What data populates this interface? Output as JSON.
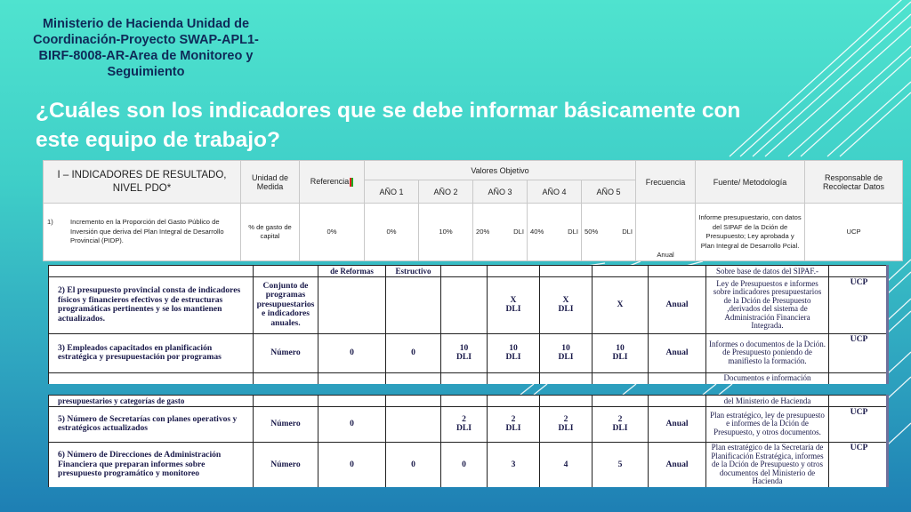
{
  "slide": {
    "org_title": "Ministerio de Hacienda Unidad de Coordinación-Proyecto SWAP-APL1-BIRF-8008-AR-Area de Monitoreo y Seguimiento",
    "question": "¿Cuáles son los indicadores que se debe informar básicamente con este equipo de trabajo?",
    "colors": {
      "title": "#ffffff",
      "org_title": "#0f2a58",
      "background_top": "#4fe3cf",
      "background_bottom": "#1e7fb4"
    }
  },
  "table_top": {
    "headers": {
      "indicador": "I – INDICADORES DE RESULTADO, NIVEL PDO*",
      "unidad": "Unidad de Medida",
      "referencia": "Referencia",
      "valores_objetivo": "Valores Objetivo",
      "anios": [
        "AÑO 1",
        "AÑO 2",
        "AÑO 3",
        "AÑO 4",
        "AÑO 5"
      ],
      "frecuencia": "Frecuencia",
      "fuente": "Fuente/ Metodología",
      "responsable": "Responsable de Recolectar Datos"
    },
    "row": {
      "num": "1)",
      "indicador": "Incremento en la Proporción del Gasto Público de Inversión que deriva del Plan Integral de Desarrollo Provincial (PIDP).",
      "unidad": "% de gasto de capital",
      "referencia": "0%",
      "anio1": "0%",
      "anio2": "10%",
      "anio3": "20%",
      "anio3_dli": "DLI",
      "anio4": "40%",
      "anio4_dli": "DLI",
      "anio5": "50%",
      "anio5_dli": "DLI",
      "frecuencia": "Anual",
      "fuente": "Informe presupuestario, con datos del SIPAF de la Dción de Presupuesto; Ley aprobada y Plan Integral de Desarrollo Pcial.",
      "responsable": "UCP"
    }
  },
  "scan1": {
    "peek": {
      "ref": "de Reformas",
      "anio1": "Estructivo",
      "fuente": "Sobre base de datos del SIPAF.-"
    },
    "rows": [
      {
        "indicador": "2) El presupuesto provincial consta de indicadores físicos y financieros efectivos y de estructuras programáticas pertinentes y se los mantienen actualizados.",
        "unidad": "Conjunto de programas presupuestarios e indicadores anuales.",
        "ref": "",
        "anio1": "",
        "anio2": "",
        "anio3": "X",
        "anio3_dli": "DLI",
        "anio4": "X",
        "anio4_dli": "DLI",
        "anio5": "X",
        "frecuencia": "Anual",
        "fuente": "Ley de Presupuestos e informes sobre indicadores presupuestarios de la Dción de Presupuesto ,derivados del sistema de Administración Financiera Integrada.",
        "responsable": "UCP"
      },
      {
        "indicador": "3) Empleados capacitados en planificación estratégica y presupuestación por programas",
        "unidad": "Número",
        "ref": "0",
        "anio1": "0",
        "anio2": "10",
        "anio2_dli": "DLI",
        "anio3": "10",
        "anio3_dli": "DLI",
        "anio4": "10",
        "anio4_dli": "DLI",
        "anio5": "10",
        "anio5_dli": "DLI",
        "frecuencia": "Anual",
        "fuente": "Informes o documentos de la Dción. de Presupuesto poniendo de manifiesto la formación.",
        "responsable": "UCP"
      }
    ],
    "tail": {
      "fuente": "Documentos e información"
    }
  },
  "scan2": {
    "peek": {
      "indicador": "presupuestarios y categorías de gasto",
      "fuente": "del Ministerio de Hacienda"
    },
    "rows": [
      {
        "indicador": "5) Número de Secretarías con planes operativos y estratégicos actualizados",
        "unidad": "Número",
        "ref": "0",
        "anio1": "",
        "anio2": "2",
        "anio2_dli": "DLI",
        "anio3": "2",
        "anio3_dli": "DLI",
        "anio4": "2",
        "anio4_dli": "DLI",
        "anio5": "2",
        "anio5_dli": "DLI",
        "frecuencia": "Anual",
        "fuente": "Plan estratégico, ley de presupuesto e informes de la Dción de Presupuesto, y otros documentos.",
        "responsable": "UCP"
      },
      {
        "indicador": "6) Número de Direcciones de Administración Financiera que preparan informes sobre presupuesto programático y monitoreo",
        "unidad": "Número",
        "ref": "0",
        "anio1": "0",
        "anio2": "0",
        "anio3": "3",
        "anio4": "4",
        "anio5": "5",
        "frecuencia": "Anual",
        "fuente": "Plan estratégico de la Secretaría de Planificación Estratégica, informes de la Dción de Presupuesto y otros documentos del Ministerio de Hacienda",
        "responsable": "UCP"
      }
    ]
  }
}
